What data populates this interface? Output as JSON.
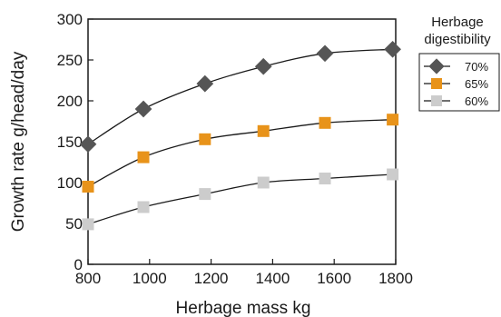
{
  "chart_data": {
    "type": "line",
    "xlabel": "Herbage mass kg",
    "ylabel": "Growth rate g/head/day",
    "xlim": [
      800,
      1800
    ],
    "ylim": [
      0,
      300
    ],
    "x_ticks": [
      800,
      1000,
      1200,
      1400,
      1600,
      1800
    ],
    "y_ticks": [
      0,
      50,
      100,
      150,
      200,
      250,
      300
    ],
    "grid": false,
    "legend": {
      "title_lines": [
        "Herbage",
        "digestibility"
      ],
      "placement": "right"
    },
    "series": [
      {
        "name": "70%",
        "marker": "diamond",
        "color": "#555555",
        "x": [
          800,
          980,
          1180,
          1370,
          1570,
          1790
        ],
        "y": [
          147,
          190,
          221,
          242,
          258,
          263
        ]
      },
      {
        "name": "65%",
        "marker": "square",
        "color": "#e8931a",
        "x": [
          800,
          980,
          1180,
          1370,
          1570,
          1790
        ],
        "y": [
          95,
          131,
          153,
          163,
          173,
          177
        ]
      },
      {
        "name": "60%",
        "marker": "square",
        "color": "#cccccc",
        "x": [
          800,
          980,
          1180,
          1370,
          1570,
          1790
        ],
        "y": [
          49,
          70,
          86,
          100,
          105,
          110
        ]
      }
    ]
  }
}
